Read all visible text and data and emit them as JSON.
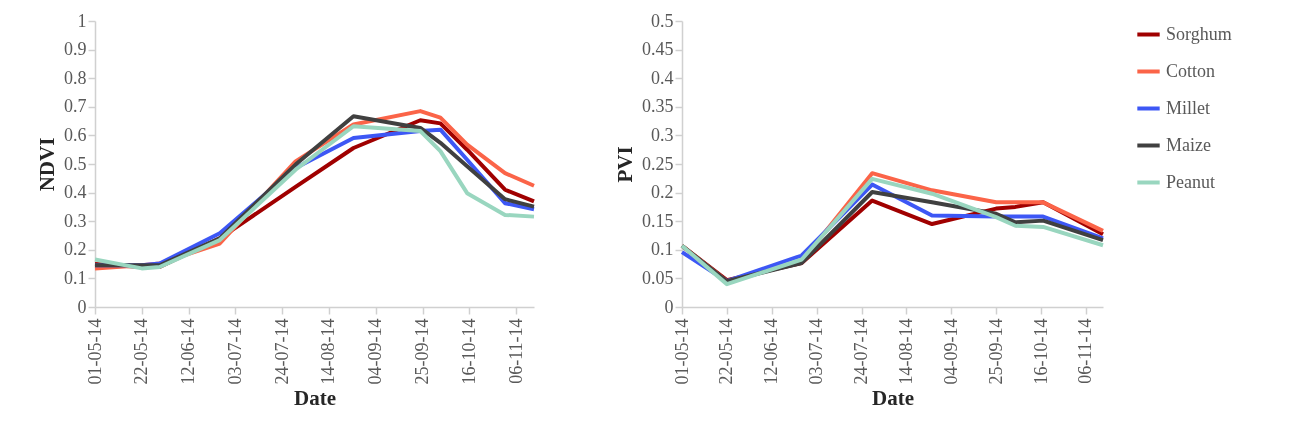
{
  "chart_data": [
    {
      "type": "line",
      "xlabel": "Date",
      "ylabel": "NDVI",
      "grid": false,
      "line_style": "solid",
      "marker": "none",
      "x": [
        "2014-05-01",
        "2014-05-22",
        "2014-05-30",
        "2014-06-26",
        "2014-07-30",
        "2014-08-25",
        "2014-09-24",
        "2014-10-03",
        "2014-10-15",
        "2014-11-01",
        "2014-11-14"
      ],
      "xlim": [
        "2014-05-01",
        "2014-11-14"
      ],
      "xticks": [
        {
          "value": "2014-05-01",
          "label": "01-05-14"
        },
        {
          "value": "2014-05-22",
          "label": "22-05-14"
        },
        {
          "value": "2014-06-12",
          "label": "12-06-14"
        },
        {
          "value": "2014-07-03",
          "label": "03-07-14"
        },
        {
          "value": "2014-07-24",
          "label": "24-07-14"
        },
        {
          "value": "2014-08-14",
          "label": "14-08-14"
        },
        {
          "value": "2014-09-04",
          "label": "04-09-14"
        },
        {
          "value": "2014-09-25",
          "label": "25-09-14"
        },
        {
          "value": "2014-10-16",
          "label": "16-10-14"
        },
        {
          "value": "2014-11-06",
          "label": "06-11-14"
        }
      ],
      "ylim": [
        0,
        1
      ],
      "yticks": [
        0,
        0.1,
        0.2,
        0.3,
        0.4,
        0.5,
        0.6,
        0.7,
        0.8,
        0.9,
        1
      ],
      "series": [
        {
          "color": "#a00000",
          "values": [
            0.15,
            0.14,
            0.14,
            0.24,
            0.42,
            0.556,
            0.653,
            0.642,
            0.55,
            0.41,
            0.369
          ]
        },
        {
          "color": "#fb6448",
          "values": [
            0.135,
            0.146,
            0.152,
            0.222,
            0.509,
            0.638,
            0.685,
            0.662,
            0.568,
            0.468,
            0.424
          ]
        },
        {
          "color": "#3d57f5",
          "values": [
            0.146,
            0.146,
            0.152,
            0.258,
            0.486,
            0.591,
            0.615,
            0.62,
            0.515,
            0.363,
            0.342
          ]
        },
        {
          "color": "#404040",
          "values": [
            0.146,
            0.146,
            0.146,
            0.24,
            0.498,
            0.667,
            0.626,
            0.574,
            0.492,
            0.377,
            0.351
          ]
        },
        {
          "color": "#99d6bf",
          "values": [
            0.166,
            0.135,
            0.14,
            0.234,
            0.48,
            0.632,
            0.615,
            0.545,
            0.398,
            0.322,
            0.316
          ]
        }
      ]
    },
    {
      "type": "line",
      "xlabel": "Date",
      "ylabel": "PVI",
      "legend": "right",
      "grid": false,
      "line_style": "solid",
      "marker": "none",
      "x": [
        "2014-05-01",
        "2014-05-22",
        "2014-06-26",
        "2014-07-29",
        "2014-08-26",
        "2014-09-25",
        "2014-10-04",
        "2014-10-17",
        "2014-11-14"
      ],
      "xlim": [
        "2014-05-01",
        "2014-11-14"
      ],
      "xticks": [
        {
          "value": "2014-05-01",
          "label": "01-05-14"
        },
        {
          "value": "2014-05-22",
          "label": "22-05-14"
        },
        {
          "value": "2014-06-12",
          "label": "12-06-14"
        },
        {
          "value": "2014-07-03",
          "label": "03-07-14"
        },
        {
          "value": "2014-07-24",
          "label": "24-07-14"
        },
        {
          "value": "2014-08-14",
          "label": "14-08-14"
        },
        {
          "value": "2014-09-04",
          "label": "04-09-14"
        },
        {
          "value": "2014-09-25",
          "label": "25-09-14"
        },
        {
          "value": "2014-10-16",
          "label": "16-10-14"
        },
        {
          "value": "2014-11-06",
          "label": "06-11-14"
        }
      ],
      "ylim": [
        0,
        0.5
      ],
      "yticks": [
        0,
        0.05,
        0.1,
        0.15,
        0.2,
        0.25,
        0.3,
        0.35,
        0.4,
        0.45,
        0.5
      ],
      "series": [
        {
          "name": "Sorghum",
          "color": "#a00000",
          "values": [
            0.107,
            0.047,
            0.077,
            0.186,
            0.145,
            0.172,
            0.175,
            0.183,
            0.127
          ]
        },
        {
          "name": "Cotton",
          "color": "#fb6448",
          "values": [
            0.107,
            0.045,
            0.08,
            0.234,
            0.204,
            0.183,
            0.183,
            0.183,
            0.133
          ]
        },
        {
          "name": "Millet",
          "color": "#3d57f5",
          "values": [
            0.096,
            0.045,
            0.09,
            0.214,
            0.16,
            0.158,
            0.158,
            0.158,
            0.12
          ]
        },
        {
          "name": "Maize",
          "color": "#404040",
          "values": [
            0.107,
            0.045,
            0.077,
            0.201,
            0.183,
            0.163,
            0.148,
            0.151,
            0.117
          ]
        },
        {
          "name": "Peanut",
          "color": "#99d6bf",
          "values": [
            0.107,
            0.04,
            0.083,
            0.224,
            0.198,
            0.157,
            0.142,
            0.14,
            0.108
          ]
        }
      ]
    }
  ]
}
